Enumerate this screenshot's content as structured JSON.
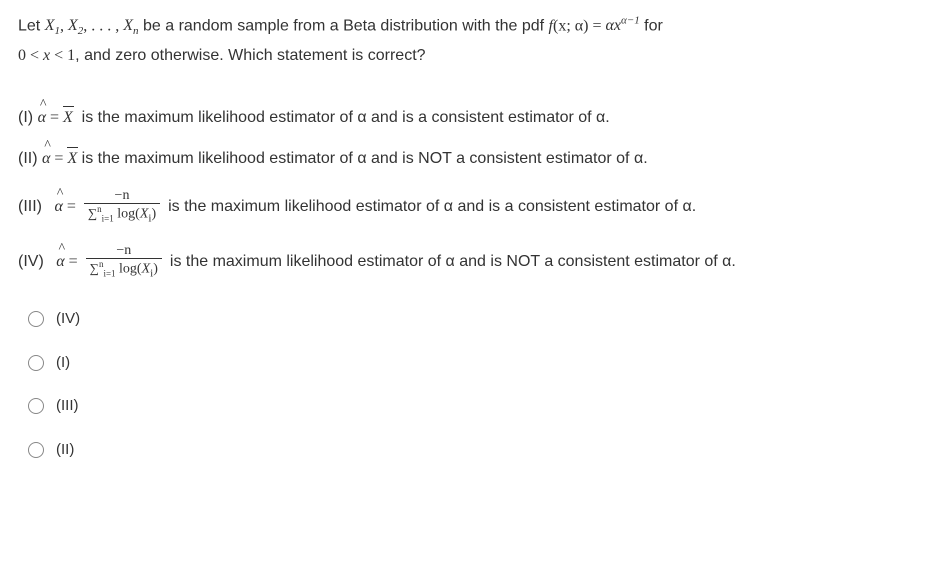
{
  "intro": {
    "line1_a": "Let ",
    "line1_vars": "X",
    "line1_b": " be a random sample from a Beta distribution with the pdf ",
    "line1_c": " for",
    "line2_a": ", and zero otherwise. Which statement is correct?",
    "range_low": "0",
    "range_hi": "1",
    "pdf_eq": " = ",
    "pdf_rhs_a": "αx",
    "pdf_exp": "α−1",
    "pdf_fn": "f",
    "pdf_args": "(x; α)",
    "subs": [
      "1",
      "2",
      "n"
    ]
  },
  "statements": [
    {
      "label": "(I)",
      "lhs_is_frac": false,
      "rhs_text": " is the maximum likelihood estimator of α and is a consistent estimator of α."
    },
    {
      "label": "(II)",
      "lhs_is_frac": false,
      "rhs_text": " is the maximum likelihood estimator of α and is NOT a consistent estimator of α."
    },
    {
      "label": "(III)",
      "lhs_is_frac": true,
      "rhs_text": " is the maximum likelihood estimator of α and is a consistent estimator of α."
    },
    {
      "label": "(IV)",
      "lhs_is_frac": true,
      "rhs_text": " is the maximum likelihood estimator of α and is NOT a consistent estimator of α."
    }
  ],
  "frac": {
    "num": "−n",
    "den_sum": "∑",
    "den_lo": "i=1",
    "den_hi": "n",
    "den_fn": " log(",
    "den_var": "X",
    "den_sub": "i",
    "den_close": ")"
  },
  "eq": " = ",
  "xbar": "X",
  "alpha": "α",
  "ahat": "α",
  "lt": " < ",
  "x": "x",
  "options": [
    "(IV)",
    "(I)",
    "(III)",
    "(II)"
  ]
}
